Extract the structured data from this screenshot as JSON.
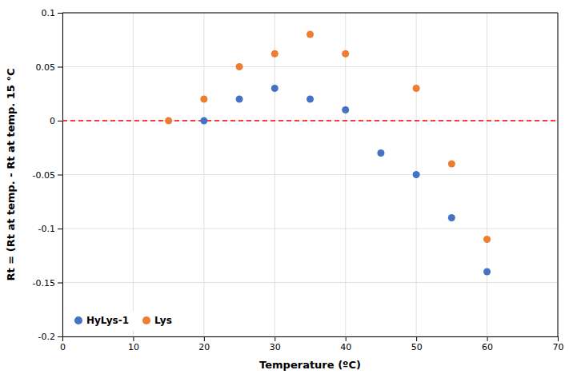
{
  "chart_data": {
    "type": "scatter",
    "xlabel": "Temperature (ºC)",
    "ylabel": "Rt = (Rt at temp. - Rt at temp. 15 °C",
    "series": [
      {
        "name": "HyLys-1",
        "color": "#4472C4",
        "marker": "circle",
        "x": [
          20,
          25,
          30,
          35,
          40,
          45,
          50,
          55,
          60
        ],
        "values": [
          0.0,
          0.02,
          0.03,
          0.02,
          0.01,
          -0.03,
          -0.05,
          -0.09,
          -0.14
        ]
      },
      {
        "name": "Lys",
        "color": "#ED7D31",
        "marker": "circle",
        "x": [
          15,
          20,
          25,
          30,
          35,
          40,
          50,
          55,
          60
        ],
        "values": [
          0.0,
          0.02,
          0.05,
          0.062,
          0.08,
          0.062,
          0.03,
          -0.04,
          -0.11
        ]
      }
    ],
    "hline": {
      "value": 0,
      "color": "#FF0000",
      "line_style": "dashed"
    },
    "xlim": [
      0,
      70
    ],
    "ylim": [
      -0.2,
      0.1
    ],
    "xticks": [
      0,
      10,
      20,
      30,
      40,
      50,
      60,
      70
    ],
    "yticks": [
      -0.2,
      -0.15,
      -0.1,
      -0.05,
      0,
      0.05,
      0.1
    ],
    "grid": true,
    "legend": "lower left"
  }
}
